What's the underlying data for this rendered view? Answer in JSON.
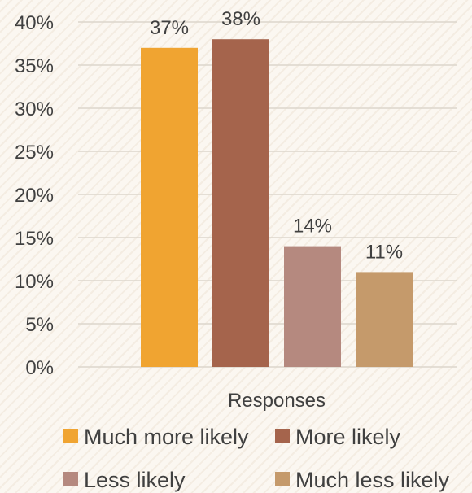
{
  "chart_data": {
    "type": "bar",
    "categories": [
      "Much more likely",
      "More likely",
      "Less likely",
      "Much less likely"
    ],
    "values": [
      37,
      38,
      14,
      11
    ],
    "data_labels": [
      "37%",
      "38%",
      "14%",
      "11%"
    ],
    "colors": [
      "#f0a431",
      "#a5644c",
      "#b5897f",
      "#c59a6b"
    ],
    "xlabel": "Responses",
    "ylim": [
      0,
      40
    ],
    "yticks": [
      {
        "value": 0,
        "label": "0%"
      },
      {
        "value": 5,
        "label": "5%"
      },
      {
        "value": 10,
        "label": "10%"
      },
      {
        "value": 15,
        "label": "15%"
      },
      {
        "value": 20,
        "label": "20%"
      },
      {
        "value": 25,
        "label": "25%"
      },
      {
        "value": 30,
        "label": "30%"
      },
      {
        "value": 35,
        "label": "35%"
      },
      {
        "value": 40,
        "label": "40%"
      }
    ],
    "grid": true,
    "legend": {
      "position": "bottom",
      "entries": [
        "Much more likely",
        "More likely",
        "Less likely",
        "Much less likely"
      ]
    }
  }
}
